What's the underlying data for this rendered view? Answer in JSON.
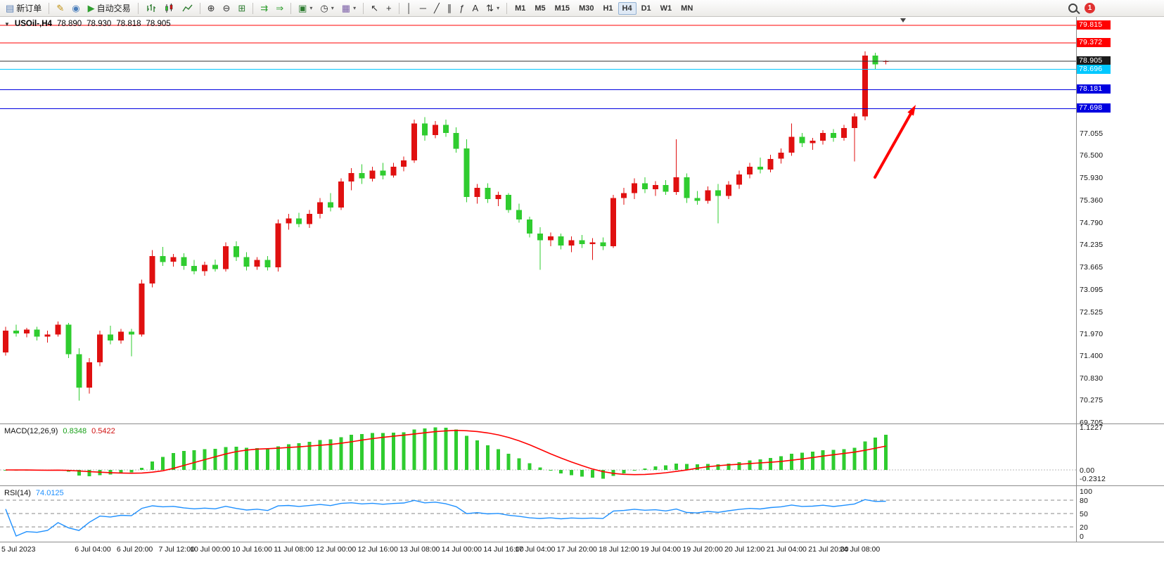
{
  "toolbar": {
    "items": [
      {
        "name": "new-order-button",
        "glyph": "▤",
        "glyph_color": "#5a7fb4",
        "label": "新订单"
      },
      {
        "type": "sep"
      },
      {
        "name": "metaeditor-button",
        "glyph": "✎",
        "glyph_color": "#c09010"
      },
      {
        "name": "mql5-community-button",
        "glyph": "◉",
        "glyph_color": "#4a7ebb"
      },
      {
        "name": "autotrading-button",
        "glyph": "▶",
        "glyph_color": "#2f9e2f",
        "label": "自动交易"
      },
      {
        "type": "sep"
      },
      {
        "name": "bar-chart-button",
        "svg": "bars"
      },
      {
        "name": "candlestick-chart-button",
        "svg": "candles"
      },
      {
        "name": "line-chart-button",
        "svg": "line"
      },
      {
        "type": "sep"
      },
      {
        "name": "zoom-in-button",
        "glyph": "⊕",
        "glyph_color": "#333333"
      },
      {
        "name": "zoom-out-button",
        "glyph": "⊖",
        "glyph_color": "#333333"
      },
      {
        "name": "tile-windows-button",
        "glyph": "⊞",
        "glyph_color": "#2f7d32"
      },
      {
        "type": "sep"
      },
      {
        "name": "auto-scroll-button",
        "glyph": "⇉",
        "glyph_color": "#2f9e2f"
      },
      {
        "name": "chart-shift-button",
        "glyph": "⇒",
        "glyph_color": "#2f9e2f"
      },
      {
        "type": "sep"
      },
      {
        "name": "new-chart-button",
        "glyph": "▣",
        "glyph_color": "#2f7d32",
        "caret": true
      },
      {
        "name": "period-button",
        "glyph": "◷",
        "glyph_color": "#333333",
        "caret": true
      },
      {
        "name": "template-button",
        "glyph": "▦",
        "glyph_color": "#7b5ea7",
        "caret": true
      },
      {
        "type": "sep"
      },
      {
        "name": "cursor-button",
        "glyph": "↖",
        "glyph_color": "#333333"
      },
      {
        "name": "crosshair-button",
        "glyph": "+",
        "glyph_color": "#333333"
      },
      {
        "type": "sep"
      },
      {
        "name": "vertical-line-button",
        "glyph": "│",
        "glyph_color": "#333333"
      },
      {
        "name": "horizontal-line-button",
        "glyph": "─",
        "glyph_color": "#333333"
      },
      {
        "name": "trendline-button",
        "glyph": "╱",
        "glyph_color": "#333333"
      },
      {
        "name": "channel-button",
        "glyph": "∥",
        "glyph_color": "#333333"
      },
      {
        "name": "fibonacci-button",
        "glyph": "ƒ",
        "glyph_color": "#333333"
      },
      {
        "name": "text-button",
        "glyph": "A",
        "glyph_color": "#333333"
      },
      {
        "name": "arrows-button",
        "glyph": "⇅",
        "glyph_color": "#333333",
        "caret": true
      },
      {
        "type": "sep"
      }
    ],
    "timeframes": [
      "M1",
      "M5",
      "M15",
      "M30",
      "H1",
      "H4",
      "D1",
      "W1",
      "MN"
    ],
    "active_timeframe": "H4",
    "notification_count": "1"
  },
  "header": {
    "dropdown_glyph": "▼",
    "symbol_period": "USOil-,H4",
    "open": "78.890",
    "high": "78.930",
    "low": "78.818",
    "close": "78.905"
  },
  "macd_panel": {
    "label": "MACD(12,26,9)",
    "value_main": "0.8348",
    "value_signal": "0.5422",
    "scale_labels": [
      "1.1227",
      "0.00",
      "-0.2312"
    ],
    "scale_values": [
      1.1227,
      0,
      -0.2312
    ]
  },
  "rsi_panel": {
    "label": "RSI(14)",
    "value": "74.0125",
    "level_labels": [
      "100",
      "80",
      "50",
      "20",
      "0"
    ],
    "level_values": [
      100,
      80,
      50,
      20,
      0
    ],
    "dashed_levels": [
      80,
      50,
      20
    ]
  },
  "price_axis": {
    "labels": [
      "77.055",
      "76.500",
      "75.930",
      "75.360",
      "74.790",
      "74.235",
      "73.665",
      "73.095",
      "72.525",
      "71.970",
      "71.400",
      "70.830",
      "70.275",
      "69.705"
    ]
  },
  "chart_data": {
    "type": "candlestick",
    "symbol": "USOil-",
    "timeframe": "H4",
    "title": "USOil-,H4 78.890 78.930 78.818 78.905",
    "ylim": [
      69.705,
      79.97
    ],
    "up_color": "#E01010",
    "down_color": "#2FCC2F",
    "current_price": "78.905",
    "horizontal_lines": [
      {
        "price": 79.815,
        "label": "79.815",
        "color": "#FF0000",
        "tag_bg": "#FF0000",
        "tag_fg": "#FFFFFF"
      },
      {
        "price": 79.372,
        "label": "79.372",
        "color": "#FF0000",
        "tag_bg": "#FF0000",
        "tag_fg": "#FFFFFF"
      },
      {
        "price": 78.905,
        "label": "78.905",
        "color": "#333333",
        "tag_bg": "#1A1A1A",
        "tag_fg": "#FFFFFF"
      },
      {
        "price": 78.696,
        "label": "78.696",
        "color": "#00C8FF",
        "tag_bg": "#00C8FF",
        "tag_fg": "#FFFFFF"
      },
      {
        "price": 78.181,
        "label": "78.181",
        "color": "#0000E0",
        "tag_bg": "#0000E0",
        "tag_fg": "#FFFFFF"
      },
      {
        "price": 77.698,
        "label": "77.698",
        "color": "#0000E0",
        "tag_bg": "#0000E0",
        "tag_fg": "#FFFFFF"
      }
    ],
    "candles": [
      [
        71.5,
        72.15,
        71.42,
        72.05
      ],
      [
        72.05,
        72.2,
        71.9,
        71.98
      ],
      [
        71.98,
        72.12,
        71.88,
        72.08
      ],
      [
        72.08,
        72.15,
        71.8,
        71.9
      ],
      [
        71.9,
        72.05,
        71.75,
        71.95
      ],
      [
        71.95,
        72.28,
        71.9,
        72.2
      ],
      [
        72.2,
        72.25,
        71.35,
        71.45
      ],
      [
        71.45,
        71.6,
        70.27,
        70.6
      ],
      [
        70.6,
        71.35,
        70.45,
        71.25
      ],
      [
        71.25,
        72.05,
        71.15,
        71.95
      ],
      [
        71.95,
        72.18,
        71.7,
        71.8
      ],
      [
        71.8,
        72.1,
        71.72,
        72.02
      ],
      [
        72.02,
        72.1,
        71.4,
        71.95
      ],
      [
        71.95,
        73.35,
        71.9,
        73.25
      ],
      [
        73.25,
        74.1,
        73.15,
        73.95
      ],
      [
        73.95,
        74.18,
        73.7,
        73.8
      ],
      [
        73.8,
        74.0,
        73.68,
        73.92
      ],
      [
        73.92,
        74.02,
        73.6,
        73.7
      ],
      [
        73.7,
        73.85,
        73.48,
        73.56
      ],
      [
        73.56,
        73.8,
        73.45,
        73.72
      ],
      [
        73.72,
        73.86,
        73.55,
        73.62
      ],
      [
        73.62,
        74.3,
        73.55,
        74.2
      ],
      [
        74.2,
        74.32,
        73.82,
        73.92
      ],
      [
        73.92,
        74.05,
        73.58,
        73.68
      ],
      [
        73.68,
        73.92,
        73.6,
        73.85
      ],
      [
        73.85,
        73.95,
        73.58,
        73.66
      ],
      [
        73.66,
        74.88,
        73.55,
        74.78
      ],
      [
        74.78,
        75.02,
        74.62,
        74.9
      ],
      [
        74.9,
        75.05,
        74.68,
        74.76
      ],
      [
        74.76,
        75.12,
        74.66,
        75.02
      ],
      [
        75.02,
        75.42,
        74.9,
        75.32
      ],
      [
        75.32,
        75.55,
        75.08,
        75.18
      ],
      [
        75.18,
        75.92,
        75.12,
        75.84
      ],
      [
        75.84,
        76.18,
        75.62,
        76.06
      ],
      [
        76.06,
        76.28,
        75.78,
        75.92
      ],
      [
        75.92,
        76.22,
        75.84,
        76.12
      ],
      [
        76.12,
        76.32,
        75.9,
        76.0
      ],
      [
        76.0,
        76.32,
        75.94,
        76.22
      ],
      [
        76.22,
        76.48,
        76.1,
        76.38
      ],
      [
        76.38,
        77.42,
        76.32,
        77.32
      ],
      [
        77.32,
        77.48,
        76.88,
        77.02
      ],
      [
        77.02,
        77.38,
        76.94,
        77.28
      ],
      [
        77.28,
        77.42,
        76.98,
        77.08
      ],
      [
        77.08,
        77.22,
        76.58,
        76.68
      ],
      [
        76.68,
        76.92,
        75.32,
        75.45
      ],
      [
        75.45,
        75.78,
        75.28,
        75.68
      ],
      [
        75.68,
        75.8,
        75.3,
        75.4
      ],
      [
        75.4,
        75.58,
        75.22,
        75.5
      ],
      [
        75.5,
        75.55,
        75.05,
        75.12
      ],
      [
        75.12,
        75.28,
        74.8,
        74.88
      ],
      [
        74.88,
        74.95,
        74.42,
        74.52
      ],
      [
        74.52,
        74.68,
        73.6,
        74.35
      ],
      [
        74.35,
        74.55,
        74.2,
        74.45
      ],
      [
        74.45,
        74.52,
        74.12,
        74.22
      ],
      [
        74.22,
        74.45,
        74.05,
        74.35
      ],
      [
        74.35,
        74.48,
        74.15,
        74.25
      ],
      [
        74.25,
        74.4,
        73.85,
        74.3
      ],
      [
        74.3,
        74.42,
        74.1,
        74.2
      ],
      [
        74.2,
        75.5,
        74.15,
        75.42
      ],
      [
        75.42,
        75.68,
        75.25,
        75.55
      ],
      [
        75.55,
        75.92,
        75.4,
        75.8
      ],
      [
        75.8,
        75.95,
        75.55,
        75.65
      ],
      [
        75.65,
        75.85,
        75.48,
        75.75
      ],
      [
        75.75,
        75.88,
        75.5,
        75.58
      ],
      [
        75.58,
        76.92,
        75.5,
        75.95
      ],
      [
        75.95,
        76.05,
        75.3,
        75.42
      ],
      [
        75.42,
        75.6,
        75.25,
        75.35
      ],
      [
        75.35,
        75.72,
        75.28,
        75.62
      ],
      [
        75.62,
        75.78,
        74.78,
        75.48
      ],
      [
        75.48,
        75.85,
        75.4,
        75.76
      ],
      [
        75.76,
        76.12,
        75.66,
        76.02
      ],
      [
        76.02,
        76.32,
        75.92,
        76.22
      ],
      [
        76.22,
        76.45,
        76.05,
        76.15
      ],
      [
        76.15,
        76.52,
        76.08,
        76.42
      ],
      [
        76.42,
        76.68,
        76.3,
        76.58
      ],
      [
        76.58,
        77.32,
        76.5,
        76.98
      ],
      [
        76.98,
        77.08,
        76.72,
        76.82
      ],
      [
        76.82,
        76.95,
        76.65,
        76.88
      ],
      [
        76.88,
        77.15,
        76.78,
        77.08
      ],
      [
        77.08,
        77.18,
        76.85,
        76.95
      ],
      [
        76.95,
        77.28,
        76.88,
        77.2
      ],
      [
        77.2,
        77.58,
        76.35,
        77.5
      ],
      [
        77.5,
        79.15,
        77.4,
        79.05
      ],
      [
        79.05,
        79.12,
        78.7,
        78.82
      ],
      [
        78.89,
        78.93,
        78.818,
        78.905
      ]
    ],
    "time_labels": [
      {
        "i": 0,
        "label": "5 Jul 2023"
      },
      {
        "i": 7,
        "label": "6 Jul 04:00"
      },
      {
        "i": 11,
        "label": "6 Jul 20:00"
      },
      {
        "i": 15,
        "label": "7 Jul 12:00"
      },
      {
        "i": 18,
        "label": "10 Jul 00:00"
      },
      {
        "i": 22,
        "label": "10 Jul 16:00"
      },
      {
        "i": 26,
        "label": "11 Jul 08:00"
      },
      {
        "i": 30,
        "label": "12 Jul 00:00"
      },
      {
        "i": 34,
        "label": "12 Jul 16:00"
      },
      {
        "i": 38,
        "label": "13 Jul 08:00"
      },
      {
        "i": 42,
        "label": "14 Jul 00:00"
      },
      {
        "i": 46,
        "label": "14 Jul 16:00"
      },
      {
        "i": 49,
        "label": "17 Jul 04:00"
      },
      {
        "i": 53,
        "label": "17 Jul 20:00"
      },
      {
        "i": 57,
        "label": "18 Jul 12:00"
      },
      {
        "i": 61,
        "label": "19 Jul 04:00"
      },
      {
        "i": 65,
        "label": "19 Jul 20:00"
      },
      {
        "i": 69,
        "label": "20 Jul 12:00"
      },
      {
        "i": 73,
        "label": "21 Jul 04:00"
      },
      {
        "i": 77,
        "label": "21 Jul 20:00"
      },
      {
        "i": 80,
        "label": "24 Jul 08:00"
      }
    ],
    "annotations": [
      {
        "type": "arrow",
        "direction": "up-right",
        "color": "#FF0000",
        "near_candle": 83
      }
    ],
    "indicators": [
      "MACD(12,26,9)",
      "RSI(14)"
    ]
  }
}
